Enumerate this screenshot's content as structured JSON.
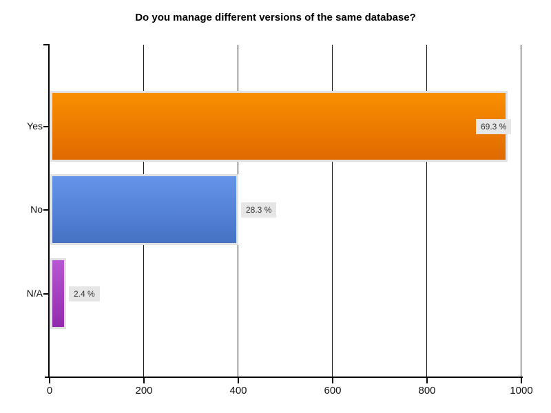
{
  "title": "Do you manage different versions of the same database?",
  "chart_data": {
    "type": "bar",
    "orientation": "horizontal",
    "title": "Do you manage different versions of the same database?",
    "categories": [
      "Yes",
      "No",
      "N/A"
    ],
    "values": [
      970,
      398,
      34
    ],
    "value_labels": [
      "69.3 %",
      "28.3 %",
      "2.4 %"
    ],
    "percentages": [
      69.3,
      28.3,
      2.4
    ],
    "xlabel": "",
    "ylabel": "",
    "xlim": [
      0,
      1000
    ],
    "xticks": [
      0,
      200,
      400,
      600,
      800,
      1000
    ],
    "grid": true,
    "legend": "none",
    "background_color": "#ffffff",
    "axis_color": "#000000",
    "gridline_color": "#1a1a1a",
    "bar_border_color": "#e2e2e2",
    "value_label_bg": "#e6e6e6",
    "value_label_text_color": "#333333",
    "bar_colors": [
      {
        "top": "#f98f00",
        "bottom": "#e06900"
      },
      {
        "top": "#6494e9",
        "bottom": "#4672c4"
      },
      {
        "top": "#b757d4",
        "bottom": "#9229ac"
      }
    ]
  }
}
